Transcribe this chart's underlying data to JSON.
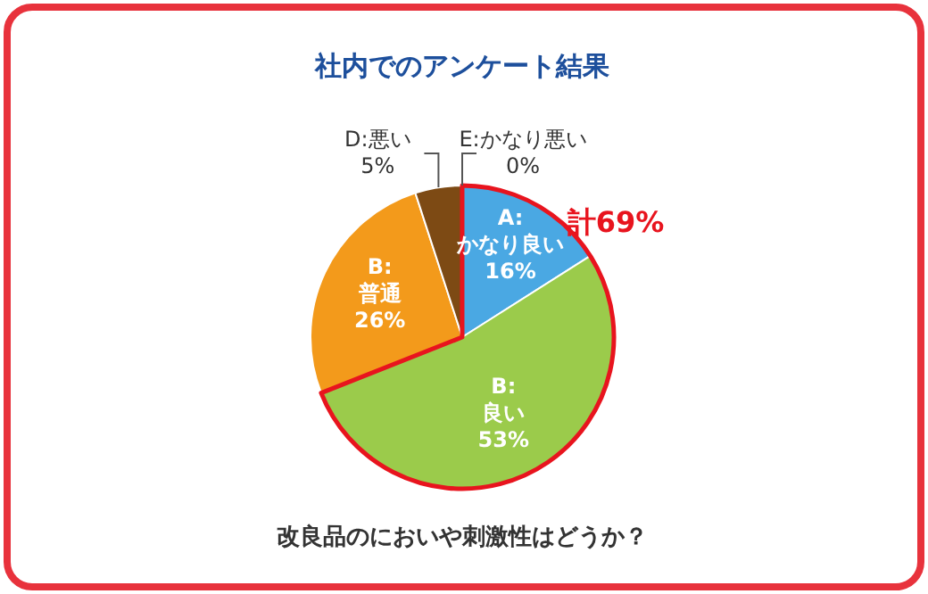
{
  "chart_data": {
    "type": "pie",
    "title": "社内でのアンケート結果",
    "categories": [
      "A:かなり良い",
      "B:良い",
      "B:普通",
      "D:悪い",
      "E:かなり悪い"
    ],
    "values": [
      16,
      53,
      26,
      5,
      0
    ],
    "colors": [
      "#4aa8e3",
      "#9bcb4b",
      "#f39a1b",
      "#7d4a14",
      "#c0392b"
    ],
    "value_labels": [
      "16%",
      "53%",
      "26%",
      "5%",
      "0%"
    ],
    "annotations": [
      "計69%",
      "改良品のにおいや刺激性はどうか？"
    ]
  }
}
